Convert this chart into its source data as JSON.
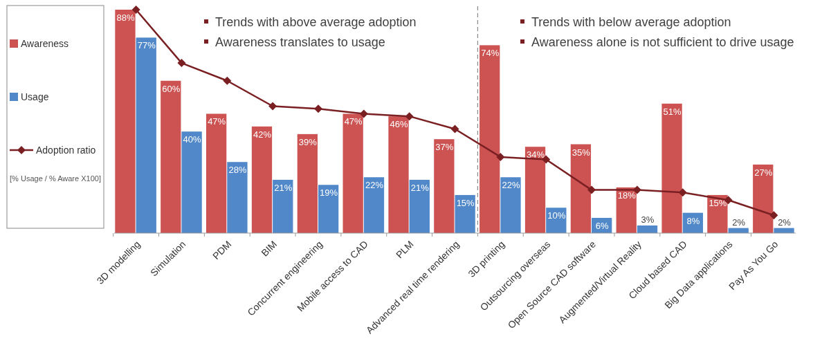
{
  "chart_data": {
    "type": "bar",
    "categories": [
      "3D modelling",
      "Simulation",
      "PDM",
      "BIM",
      "Concurrent engineering",
      "Mobile access to CAD",
      "PLM",
      "Advanced real time rendering",
      "3D printing",
      "Outsourcing overseas",
      "Open Source CAD software",
      "Augmented/Virtual Reality",
      "Cloud based CAD",
      "Big Data applications",
      "Pay As You Go"
    ],
    "series": [
      {
        "name": "Awareness",
        "color": "#cd5353",
        "values": [
          88,
          60,
          47,
          42,
          39,
          47,
          46,
          37,
          74,
          34,
          35,
          18,
          51,
          15,
          27
        ],
        "value_labels": [
          "88%",
          "60%",
          "47%",
          "42%",
          "39%",
          "47%",
          "46%",
          "37%",
          "74%",
          "34%",
          "35%",
          "18%",
          "51%",
          "15%",
          "27%"
        ]
      },
      {
        "name": "Usage",
        "color": "#5088c9",
        "values": [
          77,
          40,
          28,
          21,
          19,
          22,
          21,
          15,
          22,
          10,
          6,
          3,
          8,
          2,
          2
        ],
        "value_labels": [
          "77%",
          "40%",
          "28%",
          "21%",
          "19%",
          "22%",
          "21%",
          "15%",
          "22%",
          "10%",
          "6%",
          "3%",
          "8%",
          "2%",
          "2%"
        ]
      },
      {
        "name": "Adoption ratio",
        "type": "line",
        "color": "#7a1f22",
        "marker": "diamond",
        "values": [
          88,
          67,
          60,
          50,
          49,
          47,
          46,
          41,
          30,
          29,
          17,
          17,
          16,
          13,
          7
        ]
      }
    ],
    "legend": "left",
    "annotations": [
      "[% Usage / % Aware X100]",
      "Trends with above average adoption",
      "Awareness translates to usage",
      "Trends with below average adoption",
      "Awareness alone is not sufficient to drive usage"
    ]
  }
}
